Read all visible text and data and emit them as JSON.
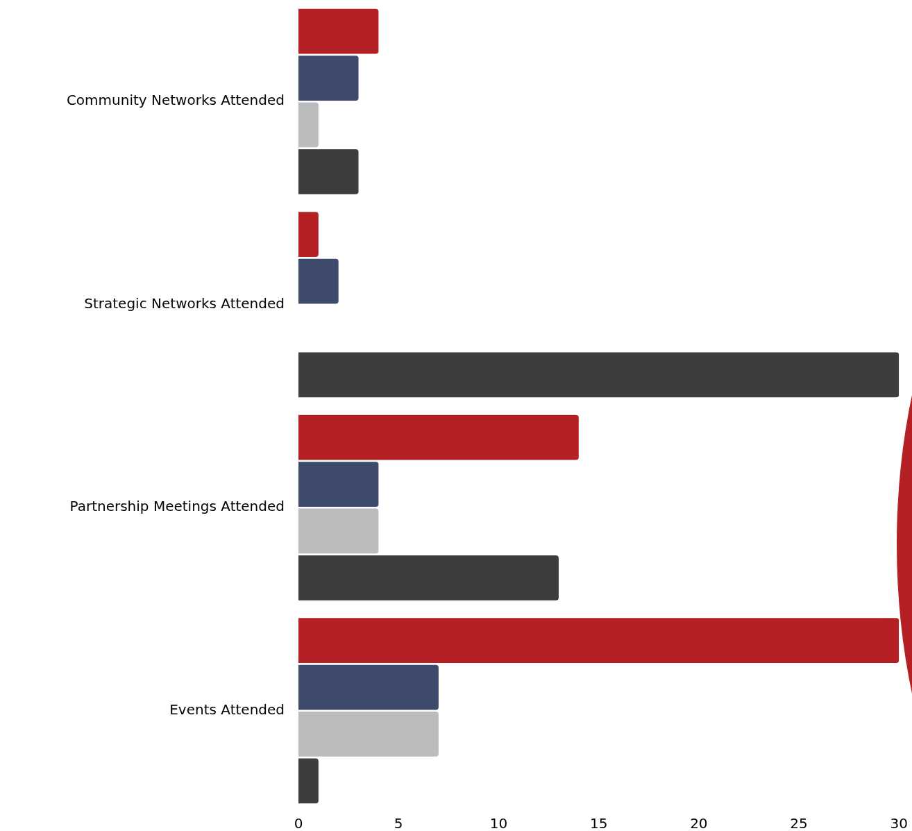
{
  "chart_data": {
    "type": "bar",
    "orientation": "horizontal",
    "categories": [
      "Community Networks Attended",
      "Strategic Networks Attended",
      "Partnership Meetings Attended",
      "Events Attended"
    ],
    "series": [
      {
        "color": "#b52025",
        "values": [
          4,
          1,
          14,
          30
        ]
      },
      {
        "color": "#3d4a6b",
        "values": [
          3,
          2,
          4,
          7
        ]
      },
      {
        "color": "#bbbcbe",
        "values": [
          1,
          0,
          4,
          7
        ]
      },
      {
        "color": "#3e3c3d",
        "values": [
          3,
          30,
          13,
          1
        ]
      }
    ],
    "xlim": [
      0,
      30
    ],
    "xticks": [
      0,
      5,
      10,
      15,
      20,
      25,
      30
    ],
    "grid": false,
    "legend": false
  }
}
